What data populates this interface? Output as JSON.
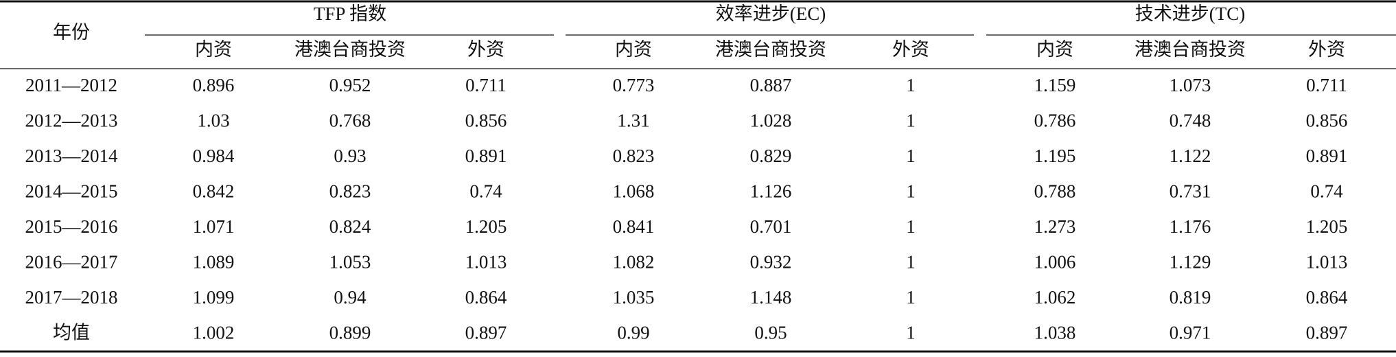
{
  "table": {
    "header": {
      "year_label": "年份",
      "groups": [
        {
          "title": "TFP 指数",
          "columns": [
            "内资",
            "港澳台商投资",
            "外资"
          ]
        },
        {
          "title": "效率进步(EC)",
          "columns": [
            "内资",
            "港澳台商投资",
            "外资"
          ]
        },
        {
          "title": "技术进步(TC)",
          "columns": [
            "内资",
            "港澳台商投资",
            "外资"
          ]
        }
      ]
    },
    "rows": [
      {
        "year": "2011—2012",
        "values": [
          0.896,
          0.952,
          0.711,
          0.773,
          0.887,
          1,
          1.159,
          1.073,
          0.711
        ]
      },
      {
        "year": "2012—2013",
        "values": [
          1.03,
          0.768,
          0.856,
          1.31,
          1.028,
          1,
          0.786,
          0.748,
          0.856
        ]
      },
      {
        "year": "2013—2014",
        "values": [
          0.984,
          0.93,
          0.891,
          0.823,
          0.829,
          1,
          1.195,
          1.122,
          0.891
        ]
      },
      {
        "year": "2014—2015",
        "values": [
          0.842,
          0.823,
          0.74,
          1.068,
          1.126,
          1,
          0.788,
          0.731,
          0.74
        ]
      },
      {
        "year": "2015—2016",
        "values": [
          1.071,
          0.824,
          1.205,
          0.841,
          0.701,
          1,
          1.273,
          1.176,
          1.205
        ]
      },
      {
        "year": "2016—2017",
        "values": [
          1.089,
          1.053,
          1.013,
          1.082,
          0.932,
          1,
          1.006,
          1.129,
          1.013
        ]
      },
      {
        "year": "2017—2018",
        "values": [
          1.099,
          0.94,
          0.864,
          1.035,
          1.148,
          1,
          1.062,
          0.819,
          0.864
        ]
      },
      {
        "year": "均值",
        "values": [
          1.002,
          0.899,
          0.897,
          0.99,
          0.95,
          1,
          1.038,
          0.971,
          0.897
        ]
      }
    ]
  }
}
